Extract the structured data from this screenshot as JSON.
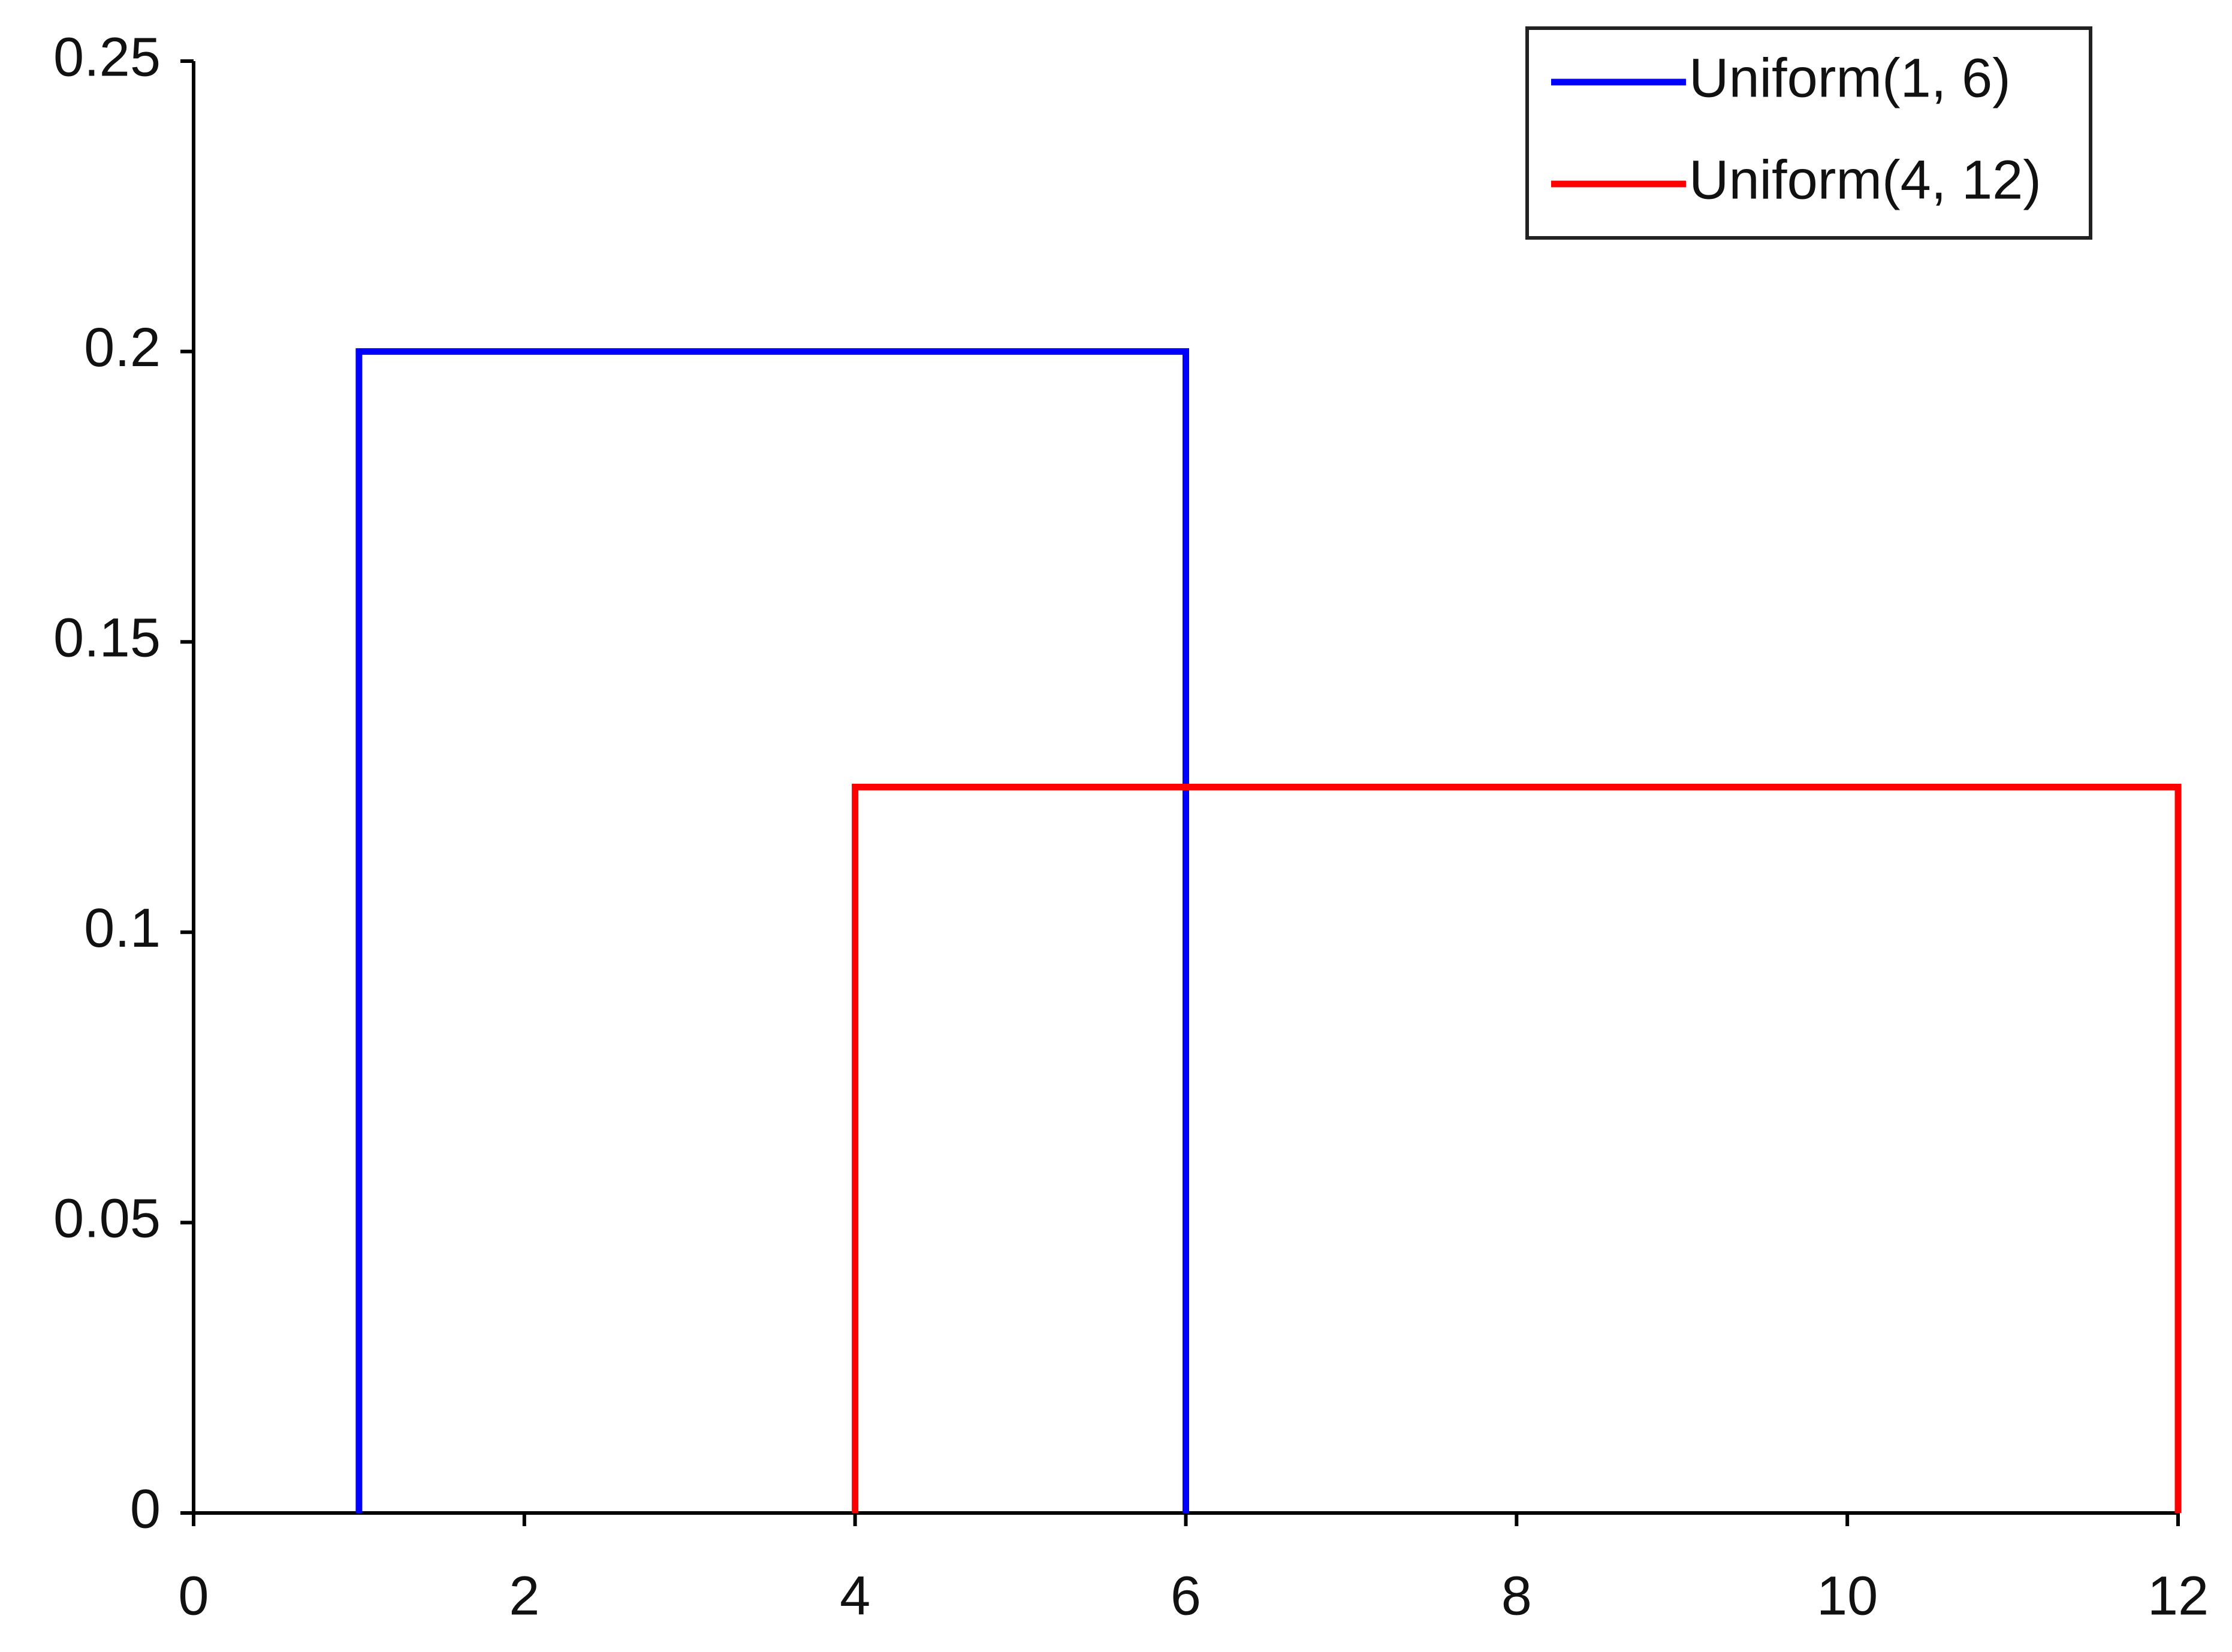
{
  "chart_data": {
    "type": "line",
    "series": [
      {
        "name": "Uniform(1, 6)",
        "color": "#0000ff",
        "x": [
          1,
          1,
          6,
          6
        ],
        "values": [
          0,
          0.2,
          0.2,
          0
        ]
      },
      {
        "name": "Uniform(4, 12)",
        "color": "#ff0000",
        "x": [
          4,
          4,
          12,
          12
        ],
        "values": [
          0,
          0.125,
          0.125,
          0
        ]
      }
    ],
    "xlim": [
      0,
      12
    ],
    "xticks": [
      0,
      2,
      4,
      6,
      8,
      10,
      12
    ],
    "ylim": [
      0,
      0.25
    ],
    "yticks": [
      0,
      0.05,
      0.1,
      0.15,
      0.2,
      0.25
    ],
    "grid": false,
    "legend": "top right"
  }
}
